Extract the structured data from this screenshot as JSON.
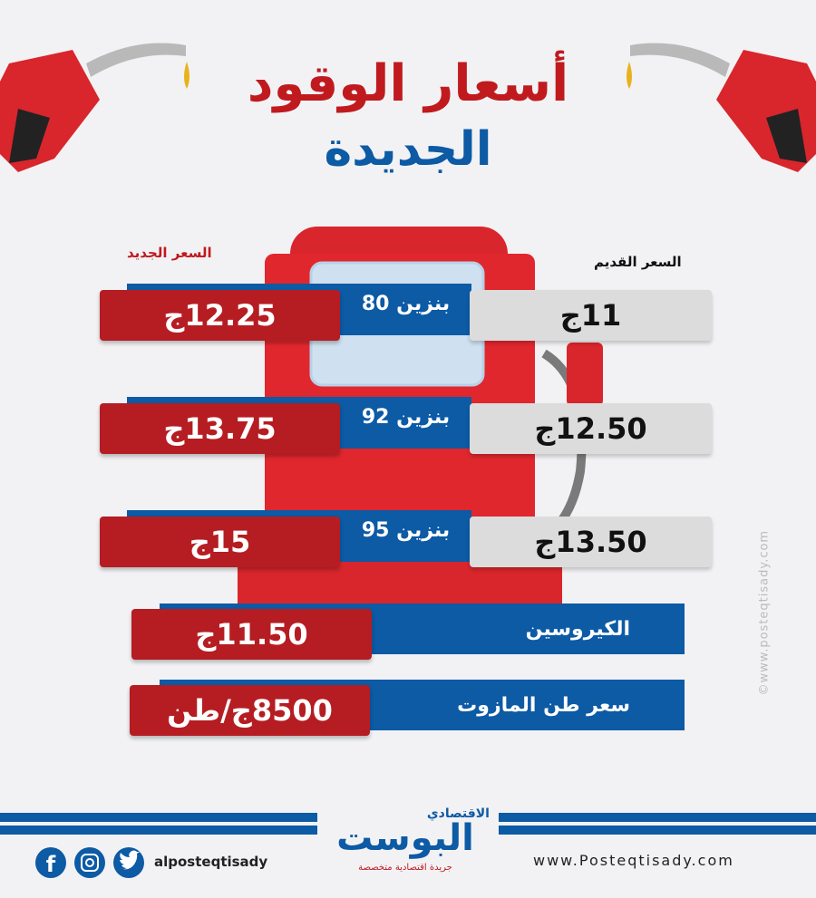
{
  "header": {
    "title": "أسعار الوقود",
    "subtitle": "الجديدة"
  },
  "columns": {
    "new": "السعر الجديد",
    "old": "السعر القديم"
  },
  "rows": [
    {
      "name": "بنزين 80",
      "old": "11ج",
      "new": "12.25ج"
    },
    {
      "name": "بنزين 92",
      "old": "12.50ج",
      "new": "13.75ج"
    },
    {
      "name": "بنزين 95",
      "old": "13.50ج",
      "new": "15ج"
    },
    {
      "name": "الكيروسين",
      "new": "11.50ج"
    },
    {
      "name": "سعر طن المازوت",
      "new": "8500ج/طن"
    }
  ],
  "footer": {
    "handle": "alposteqtisady",
    "website": "www.Posteqtisady.com",
    "logo": "البوست",
    "logo_top": "الاقتصادي",
    "logo_tagline": "جريدة اقتصادية متخصصة"
  },
  "watermark": "©www.posteqtisady.com"
}
